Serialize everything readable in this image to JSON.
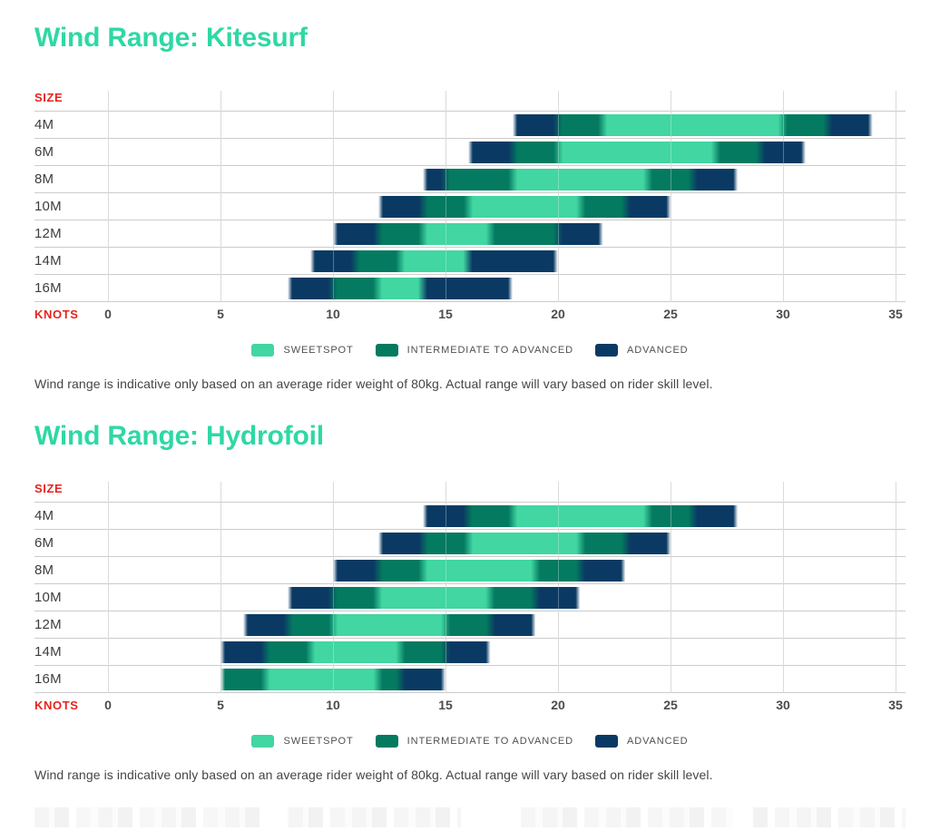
{
  "page": {
    "background": "#ffffff",
    "accent_color": "#2ed8a4",
    "axis_label_color": "#e7231b",
    "gridline_color": "#cccccc"
  },
  "legend": {
    "colors": {
      "sweetspot": "#41d6a2",
      "intermediate": "#047a60",
      "advanced": "#0a3a63"
    },
    "items": [
      {
        "level": "sweetspot",
        "label": "SWEETSPOT"
      },
      {
        "level": "intermediate",
        "label": "INTERMEDIATE TO ADVANCED"
      },
      {
        "level": "advanced",
        "label": "ADVANCED"
      }
    ]
  },
  "chart_data": [
    {
      "type": "bar",
      "orientation": "horizontal-stacked-range",
      "title": "Wind Range: Kitesurf",
      "xlabel": "KNOTS",
      "ylabel": "SIZE",
      "xlim": [
        0,
        35
      ],
      "xticks": [
        0,
        5,
        10,
        15,
        20,
        25,
        30,
        35
      ],
      "grid": true,
      "legend_position": "bottom",
      "note": "Wind range is indicative only based on an average rider weight of 80kg. Actual range will vary based on rider skill level.",
      "categories": [
        "4M",
        "6M",
        "8M",
        "10M",
        "12M",
        "14M",
        "16M"
      ],
      "rows": [
        {
          "size": "4M",
          "segments": [
            {
              "from": 18,
              "to": 20,
              "level": "advanced"
            },
            {
              "from": 20,
              "to": 22,
              "level": "intermediate"
            },
            {
              "from": 22,
              "to": 30,
              "level": "sweetspot"
            },
            {
              "from": 30,
              "to": 32,
              "level": "intermediate"
            },
            {
              "from": 32,
              "to": 34,
              "level": "advanced"
            }
          ]
        },
        {
          "size": "6M",
          "segments": [
            {
              "from": 16,
              "to": 18,
              "level": "advanced"
            },
            {
              "from": 18,
              "to": 20,
              "level": "intermediate"
            },
            {
              "from": 20,
              "to": 27,
              "level": "sweetspot"
            },
            {
              "from": 27,
              "to": 29,
              "level": "intermediate"
            },
            {
              "from": 29,
              "to": 31,
              "level": "advanced"
            }
          ]
        },
        {
          "size": "8M",
          "segments": [
            {
              "from": 14,
              "to": 15,
              "level": "advanced"
            },
            {
              "from": 15,
              "to": 18,
              "level": "intermediate"
            },
            {
              "from": 18,
              "to": 24,
              "level": "sweetspot"
            },
            {
              "from": 24,
              "to": 26,
              "level": "intermediate"
            },
            {
              "from": 26,
              "to": 28,
              "level": "advanced"
            }
          ]
        },
        {
          "size": "10M",
          "segments": [
            {
              "from": 12,
              "to": 14,
              "level": "advanced"
            },
            {
              "from": 14,
              "to": 16,
              "level": "intermediate"
            },
            {
              "from": 16,
              "to": 21,
              "level": "sweetspot"
            },
            {
              "from": 21,
              "to": 23,
              "level": "intermediate"
            },
            {
              "from": 23,
              "to": 25,
              "level": "advanced"
            }
          ]
        },
        {
          "size": "12M",
          "segments": [
            {
              "from": 10,
              "to": 12,
              "level": "advanced"
            },
            {
              "from": 12,
              "to": 14,
              "level": "intermediate"
            },
            {
              "from": 14,
              "to": 17,
              "level": "sweetspot"
            },
            {
              "from": 17,
              "to": 20,
              "level": "intermediate"
            },
            {
              "from": 20,
              "to": 22,
              "level": "advanced"
            }
          ]
        },
        {
          "size": "14M",
          "segments": [
            {
              "from": 9,
              "to": 11,
              "level": "advanced"
            },
            {
              "from": 11,
              "to": 13,
              "level": "intermediate"
            },
            {
              "from": 13,
              "to": 16,
              "level": "sweetspot"
            },
            {
              "from": 16,
              "to": 20,
              "level": "advanced"
            }
          ]
        },
        {
          "size": "16M",
          "segments": [
            {
              "from": 8,
              "to": 10,
              "level": "advanced"
            },
            {
              "from": 10,
              "to": 12,
              "level": "intermediate"
            },
            {
              "from": 12,
              "to": 14,
              "level": "sweetspot"
            },
            {
              "from": 14,
              "to": 18,
              "level": "advanced"
            }
          ]
        }
      ]
    },
    {
      "type": "bar",
      "orientation": "horizontal-stacked-range",
      "title": "Wind Range: Hydrofoil",
      "xlabel": "KNOTS",
      "ylabel": "SIZE",
      "xlim": [
        0,
        35
      ],
      "xticks": [
        0,
        5,
        10,
        15,
        20,
        25,
        30,
        35
      ],
      "grid": true,
      "legend_position": "bottom",
      "note": "Wind range is indicative only based on an average rider weight of 80kg. Actual range will vary based on rider skill level.",
      "categories": [
        "4M",
        "6M",
        "8M",
        "10M",
        "12M",
        "14M",
        "16M"
      ],
      "rows": [
        {
          "size": "4M",
          "segments": [
            {
              "from": 14,
              "to": 16,
              "level": "advanced"
            },
            {
              "from": 16,
              "to": 18,
              "level": "intermediate"
            },
            {
              "from": 18,
              "to": 24,
              "level": "sweetspot"
            },
            {
              "from": 24,
              "to": 26,
              "level": "intermediate"
            },
            {
              "from": 26,
              "to": 28,
              "level": "advanced"
            }
          ]
        },
        {
          "size": "6M",
          "segments": [
            {
              "from": 12,
              "to": 14,
              "level": "advanced"
            },
            {
              "from": 14,
              "to": 16,
              "level": "intermediate"
            },
            {
              "from": 16,
              "to": 21,
              "level": "sweetspot"
            },
            {
              "from": 21,
              "to": 23,
              "level": "intermediate"
            },
            {
              "from": 23,
              "to": 25,
              "level": "advanced"
            }
          ]
        },
        {
          "size": "8M",
          "segments": [
            {
              "from": 10,
              "to": 12,
              "level": "advanced"
            },
            {
              "from": 12,
              "to": 14,
              "level": "intermediate"
            },
            {
              "from": 14,
              "to": 19,
              "level": "sweetspot"
            },
            {
              "from": 19,
              "to": 21,
              "level": "intermediate"
            },
            {
              "from": 21,
              "to": 23,
              "level": "advanced"
            }
          ]
        },
        {
          "size": "10M",
          "segments": [
            {
              "from": 8,
              "to": 10,
              "level": "advanced"
            },
            {
              "from": 10,
              "to": 12,
              "level": "intermediate"
            },
            {
              "from": 12,
              "to": 17,
              "level": "sweetspot"
            },
            {
              "from": 17,
              "to": 19,
              "level": "intermediate"
            },
            {
              "from": 19,
              "to": 21,
              "level": "advanced"
            }
          ]
        },
        {
          "size": "12M",
          "segments": [
            {
              "from": 6,
              "to": 8,
              "level": "advanced"
            },
            {
              "from": 8,
              "to": 10,
              "level": "intermediate"
            },
            {
              "from": 10,
              "to": 15,
              "level": "sweetspot"
            },
            {
              "from": 15,
              "to": 17,
              "level": "intermediate"
            },
            {
              "from": 17,
              "to": 19,
              "level": "advanced"
            }
          ]
        },
        {
          "size": "14M",
          "segments": [
            {
              "from": 5,
              "to": 7,
              "level": "advanced"
            },
            {
              "from": 7,
              "to": 9,
              "level": "intermediate"
            },
            {
              "from": 9,
              "to": 13,
              "level": "sweetspot"
            },
            {
              "from": 13,
              "to": 15,
              "level": "intermediate"
            },
            {
              "from": 15,
              "to": 17,
              "level": "advanced"
            }
          ]
        },
        {
          "size": "16M",
          "segments": [
            {
              "from": 5,
              "to": 7,
              "level": "intermediate"
            },
            {
              "from": 7,
              "to": 12,
              "level": "sweetspot"
            },
            {
              "from": 12,
              "to": 13,
              "level": "intermediate"
            },
            {
              "from": 13,
              "to": 15,
              "level": "advanced"
            }
          ]
        }
      ]
    }
  ]
}
